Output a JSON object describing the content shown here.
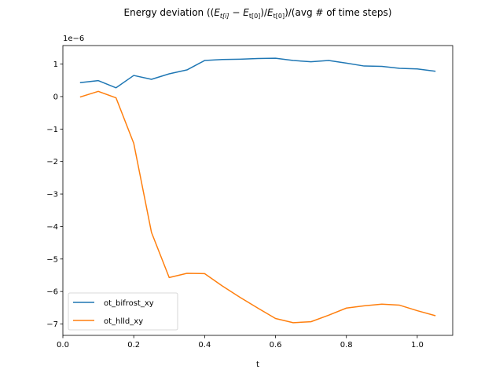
{
  "chart_data": {
    "type": "line",
    "title_parts": {
      "prefix": "Energy deviation ((",
      "e1": "E",
      "sub1": "t[i]",
      "minus": " − ",
      "e2": "E",
      "sub2": "t[0]",
      "slash": ")/",
      "e3": "E",
      "sub3": "t[0]",
      "suffix": ")/(avg # of time steps)"
    },
    "xlabel": "t",
    "ylabel": "",
    "y_offset_label": "1e−6",
    "xlim": [
      0.0,
      1.1
    ],
    "ylim": [
      -7.35,
      1.57
    ],
    "xticks": [
      0.0,
      0.2,
      0.4,
      0.6,
      0.8,
      1.0
    ],
    "xtick_labels": [
      "0.0",
      "0.2",
      "0.4",
      "0.6",
      "0.8",
      "1.0"
    ],
    "yticks": [
      1,
      0,
      -1,
      -2,
      -3,
      -4,
      -5,
      -6,
      -7
    ],
    "ytick_labels": [
      "1",
      "0",
      "−1",
      "−2",
      "−3",
      "−4",
      "−5",
      "−6",
      "−7"
    ],
    "grid": false,
    "legend_position": "lower-left",
    "x": [
      0.05,
      0.1,
      0.15,
      0.2,
      0.25,
      0.3,
      0.35,
      0.4,
      0.45,
      0.5,
      0.55,
      0.6,
      0.65,
      0.7,
      0.75,
      0.8,
      0.85,
      0.9,
      0.95,
      1.0,
      1.05
    ],
    "series": [
      {
        "name": "ot_bifrost_xy",
        "color": "#1f77b4",
        "values": [
          0.43,
          0.49,
          0.27,
          0.65,
          0.53,
          0.7,
          0.82,
          1.11,
          1.14,
          1.15,
          1.17,
          1.18,
          1.11,
          1.07,
          1.11,
          1.03,
          0.94,
          0.93,
          0.87,
          0.85,
          0.78
        ]
      },
      {
        "name": "ot_hlld_xy",
        "color": "#ff7f0e",
        "values": [
          -0.01,
          0.16,
          -0.04,
          -1.44,
          -4.18,
          -5.57,
          -5.44,
          -5.45,
          -5.83,
          -6.18,
          -6.51,
          -6.83,
          -6.96,
          -6.93,
          -6.73,
          -6.51,
          -6.44,
          -6.39,
          -6.42,
          -6.59,
          -6.74
        ]
      }
    ]
  }
}
